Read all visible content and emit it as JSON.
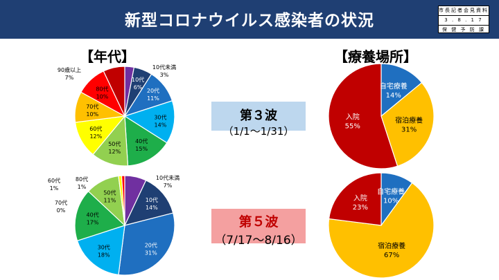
{
  "header": {
    "title": "新型コロナウイルス感染者の状況",
    "stamp_line1": "市長記者会見資料",
    "stamp_line2": "3 . 8 . 1 7",
    "stamp_line3": "保 健 予 防 課"
  },
  "sections": {
    "age": "【年代】",
    "place": "【療養場所】"
  },
  "waves": {
    "w3": {
      "label": "第３波",
      "range": "（1/1～1/31）"
    },
    "w5": {
      "label": "第５波",
      "range": "（7/17～8/16）"
    }
  },
  "colors": {
    "header_bg": "#1f3f73",
    "wave3_box": "#bdd7ee",
    "wave5_box": "#f4a0a0"
  },
  "chart_data": [
    {
      "type": "pie",
      "title": "第３波 年代",
      "labels": [
        "10代未満",
        "10代",
        "20代",
        "30代",
        "40代",
        "50代",
        "60代",
        "70代",
        "80代",
        "90歳以上"
      ],
      "values": [
        3,
        6,
        11,
        14,
        15,
        12,
        12,
        10,
        10,
        7
      ],
      "value_labels": [
        "3%",
        "6%",
        "11%",
        "14%",
        "15%",
        "12%",
        "12%",
        "10%",
        "10%",
        "7%"
      ],
      "colors": [
        "#7030a0",
        "#1f3f73",
        "#1f6fc0",
        "#00b0f0",
        "#1eae4a",
        "#92d050",
        "#ffff00",
        "#ffc000",
        "#ff0000",
        "#c00000"
      ]
    },
    {
      "type": "pie",
      "title": "第５波 年代",
      "labels": [
        "10代未満",
        "10代",
        "20代",
        "30代",
        "40代",
        "50代",
        "60代",
        "70代",
        "80代"
      ],
      "values": [
        7,
        14,
        31,
        18,
        17,
        11,
        1,
        0,
        1
      ],
      "value_labels": [
        "7%",
        "14%",
        "31%",
        "18%",
        "17%",
        "11%",
        "1%",
        "0%",
        "1%"
      ],
      "colors": [
        "#7030a0",
        "#1f3f73",
        "#1f6fc0",
        "#00b0f0",
        "#1eae4a",
        "#92d050",
        "#ffff00",
        "#ffc000",
        "#ff0000"
      ]
    },
    {
      "type": "pie",
      "title": "第３波 療養場所",
      "labels": [
        "自宅療養",
        "宿泊療養",
        "入院"
      ],
      "values": [
        14,
        31,
        55
      ],
      "value_labels": [
        "14%",
        "31%",
        "55%"
      ],
      "colors": [
        "#1f6fc0",
        "#ffc000",
        "#c00000"
      ]
    },
    {
      "type": "pie",
      "title": "第５波 療養場所",
      "labels": [
        "自宅療養",
        "宿泊療養",
        "入院"
      ],
      "values": [
        10,
        67,
        23
      ],
      "value_labels": [
        "10%",
        "67%",
        "23%"
      ],
      "colors": [
        "#1f6fc0",
        "#ffc000",
        "#c00000"
      ]
    }
  ]
}
